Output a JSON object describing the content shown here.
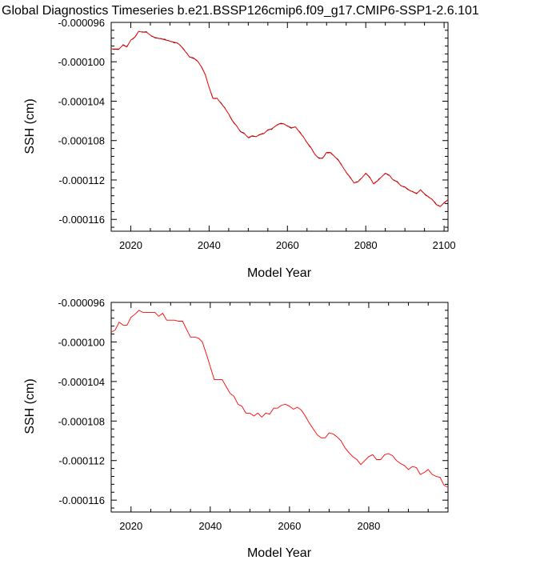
{
  "title": "Global Diagnostics Timeseries b.e21.BSSP126cmip6.f09_g17.CMIP6-SSP1-2.6.101",
  "colors": {
    "annual": "#ff0000",
    "monthly": "#000000",
    "axis": "#000000"
  },
  "chart_data": [
    {
      "type": "line",
      "xlabel": "Model Year",
      "ylabel": "SSH (cm)",
      "xlim": [
        2015,
        2101
      ],
      "ylim": [
        -0.0001172,
        -9.6e-05
      ],
      "xticks": [
        2020,
        2040,
        2060,
        2080,
        2100
      ],
      "xtick_labels": [
        "2020",
        "2040",
        "2060",
        "2080",
        "2100"
      ],
      "yticks": [
        -9.6e-05,
        -0.0001,
        -0.000104,
        -0.000108,
        -0.000112,
        -0.000116
      ],
      "ytick_labels": [
        "-0.000096",
        "-0.000100",
        "-0.000104",
        "-0.000108",
        "-0.000112",
        "-0.000116"
      ],
      "series": [
        {
          "style": "monthly-black-with-red-annual-overlay",
          "x": [
            2015,
            2017,
            2018,
            2019,
            2020,
            2021,
            2022,
            2023,
            2024,
            2025,
            2026,
            2027,
            2028,
            2029,
            2030,
            2031,
            2032,
            2033,
            2034,
            2035,
            2036,
            2037,
            2038,
            2039,
            2040,
            2041,
            2042,
            2043,
            2044,
            2045,
            2046,
            2047,
            2048,
            2049,
            2050,
            2051,
            2052,
            2053,
            2054,
            2055,
            2056,
            2057,
            2058,
            2059,
            2060,
            2061,
            2062,
            2063,
            2064,
            2065,
            2066,
            2067,
            2068,
            2069,
            2070,
            2071,
            2072,
            2073,
            2074,
            2075,
            2076,
            2077,
            2078,
            2079,
            2080,
            2081,
            2082,
            2083,
            2084,
            2085,
            2086,
            2087,
            2088,
            2089,
            2090,
            2091,
            2092,
            2093,
            2094,
            2095,
            2096,
            2097,
            2098,
            2099,
            2100,
            2101
          ],
          "values": [
            -9.87e-05,
            -9.87e-05,
            -9.83e-05,
            -9.85e-05,
            -9.78e-05,
            -9.75e-05,
            -9.69e-05,
            -9.7e-05,
            -9.7e-05,
            -9.73e-05,
            -9.75e-05,
            -9.76e-05,
            -9.77e-05,
            -9.78e-05,
            -9.79e-05,
            -9.8e-05,
            -9.81e-05,
            -9.85e-05,
            -9.9e-05,
            -9.95e-05,
            -9.96e-05,
            -9.99e-05,
            -0.0001005,
            -0.0001013,
            -0.0001026,
            -0.0001037,
            -0.0001037,
            -0.0001042,
            -0.0001047,
            -0.0001053,
            -0.000106,
            -0.0001065,
            -0.0001071,
            -0.0001073,
            -0.0001077,
            -0.0001075,
            -0.0001076,
            -0.0001074,
            -0.0001073,
            -0.0001069,
            -0.0001068,
            -0.0001065,
            -0.0001063,
            -0.0001063,
            -0.0001065,
            -0.0001067,
            -0.0001066,
            -0.0001071,
            -0.0001076,
            -0.0001082,
            -0.0001087,
            -0.0001094,
            -0.0001098,
            -0.0001098,
            -0.0001092,
            -0.0001092,
            -0.0001096,
            -0.00011,
            -0.0001106,
            -0.0001112,
            -0.0001117,
            -0.0001123,
            -0.0001122,
            -0.0001118,
            -0.0001113,
            -0.0001117,
            -0.0001124,
            -0.0001121,
            -0.0001117,
            -0.0001113,
            -0.0001115,
            -0.000112,
            -0.0001122,
            -0.0001126,
            -0.0001127,
            -0.000113,
            -0.0001132,
            -0.0001134,
            -0.000113,
            -0.0001134,
            -0.0001137,
            -0.000114,
            -0.0001145,
            -0.0001147,
            -0.0001143,
            -0.000114
          ]
        }
      ]
    },
    {
      "type": "line",
      "xlabel": "Model Year",
      "ylabel": "SSH (cm)",
      "xlim": [
        2015,
        2100
      ],
      "ylim": [
        -0.0001172,
        -9.6e-05
      ],
      "xticks": [
        2020,
        2040,
        2060,
        2080
      ],
      "xtick_labels": [
        "2020",
        "2040",
        "2060",
        "2080"
      ],
      "yticks": [
        -9.6e-05,
        -0.0001,
        -0.000104,
        -0.000108,
        -0.000112,
        -0.000116
      ],
      "ytick_labels": [
        "-0.000096",
        "-0.000100",
        "-0.000104",
        "-0.000108",
        "-0.000112",
        "-0.000116"
      ],
      "series": [
        {
          "style": "annual-red",
          "x": [
            2015,
            2016,
            2017,
            2018,
            2019,
            2020,
            2021,
            2022,
            2023,
            2024,
            2025,
            2026,
            2027,
            2028,
            2029,
            2030,
            2031,
            2032,
            2033,
            2034,
            2035,
            2036,
            2037,
            2038,
            2039,
            2040,
            2041,
            2042,
            2043,
            2044,
            2045,
            2046,
            2047,
            2048,
            2049,
            2050,
            2051,
            2052,
            2053,
            2054,
            2055,
            2056,
            2057,
            2058,
            2059,
            2060,
            2061,
            2062,
            2063,
            2064,
            2065,
            2066,
            2067,
            2068,
            2069,
            2070,
            2071,
            2072,
            2073,
            2074,
            2075,
            2076,
            2077,
            2078,
            2079,
            2080,
            2081,
            2082,
            2083,
            2084,
            2085,
            2086,
            2087,
            2088,
            2089,
            2090,
            2091,
            2092,
            2093,
            2094,
            2095,
            2096,
            2097,
            2098,
            2099,
            2100
          ],
          "values": [
            -9.9e-05,
            -9.88e-05,
            -9.8e-05,
            -9.83e-05,
            -9.83e-05,
            -9.75e-05,
            -9.72e-05,
            -9.68e-05,
            -9.7e-05,
            -9.7e-05,
            -9.7e-05,
            -9.7e-05,
            -9.74e-05,
            -9.71e-05,
            -9.78e-05,
            -9.78e-05,
            -9.78e-05,
            -9.79e-05,
            -9.79e-05,
            -9.87e-05,
            -9.95e-05,
            -9.95e-05,
            -9.96e-05,
            -0.0001,
            -0.0001012,
            -0.0001025,
            -0.0001038,
            -0.0001038,
            -0.0001038,
            -0.0001045,
            -0.0001052,
            -0.0001055,
            -0.0001063,
            -0.0001065,
            -0.0001072,
            -0.0001072,
            -0.0001075,
            -0.0001072,
            -0.0001076,
            -0.0001072,
            -0.0001073,
            -0.0001067,
            -0.0001067,
            -0.0001064,
            -0.0001063,
            -0.0001065,
            -0.0001068,
            -0.0001066,
            -0.0001069,
            -0.0001075,
            -0.0001082,
            -0.0001088,
            -0.0001094,
            -0.0001097,
            -0.0001097,
            -0.0001092,
            -0.0001093,
            -0.0001096,
            -0.00011,
            -0.0001107,
            -0.0001112,
            -0.0001116,
            -0.0001119,
            -0.0001124,
            -0.000112,
            -0.0001116,
            -0.0001114,
            -0.0001119,
            -0.0001119,
            -0.0001114,
            -0.0001113,
            -0.0001115,
            -0.000112,
            -0.0001123,
            -0.0001125,
            -0.0001129,
            -0.0001126,
            -0.0001127,
            -0.0001134,
            -0.0001132,
            -0.0001129,
            -0.0001134,
            -0.0001136,
            -0.0001137,
            -0.0001145,
            -0.0001147
          ]
        }
      ]
    }
  ]
}
